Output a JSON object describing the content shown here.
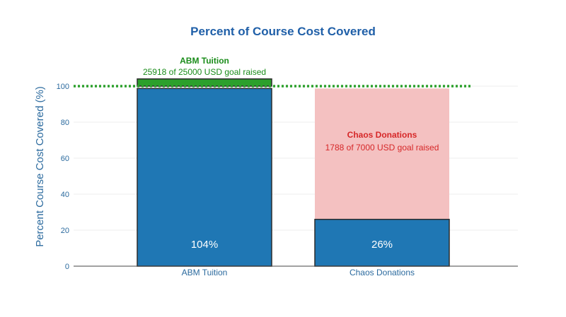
{
  "colors": {
    "bar": "#1f77b4",
    "bar_outline": "#2b2b2b",
    "overflow": "#2ca02c",
    "goal_line": "#2ca02c",
    "remaining": "#f4c1c1",
    "axis_text": "#2b6a9e",
    "title": "#1f5fa8",
    "abm_label": "#1a8c1a",
    "chaos_label": "#d62728",
    "grid": "#ececec"
  },
  "chart_data": {
    "type": "bar",
    "title": "Percent of Course Cost Covered",
    "xlabel": "",
    "ylabel": "Percent Course Cost Covered (%)",
    "ylim": [
      0,
      100
    ],
    "yticks": [
      0,
      20,
      40,
      60,
      80,
      100
    ],
    "categories": [
      "ABM Tuition",
      "Chaos Donations"
    ],
    "values": [
      104,
      26
    ],
    "value_labels": [
      "104%",
      "26%"
    ],
    "goal_line": 100,
    "annotations": [
      {
        "title": "ABM Tuition",
        "text": "25918 of 25000 USD goal raised"
      },
      {
        "title": "Chaos Donations",
        "text": "1788 of 7000 USD goal raised"
      }
    ]
  }
}
